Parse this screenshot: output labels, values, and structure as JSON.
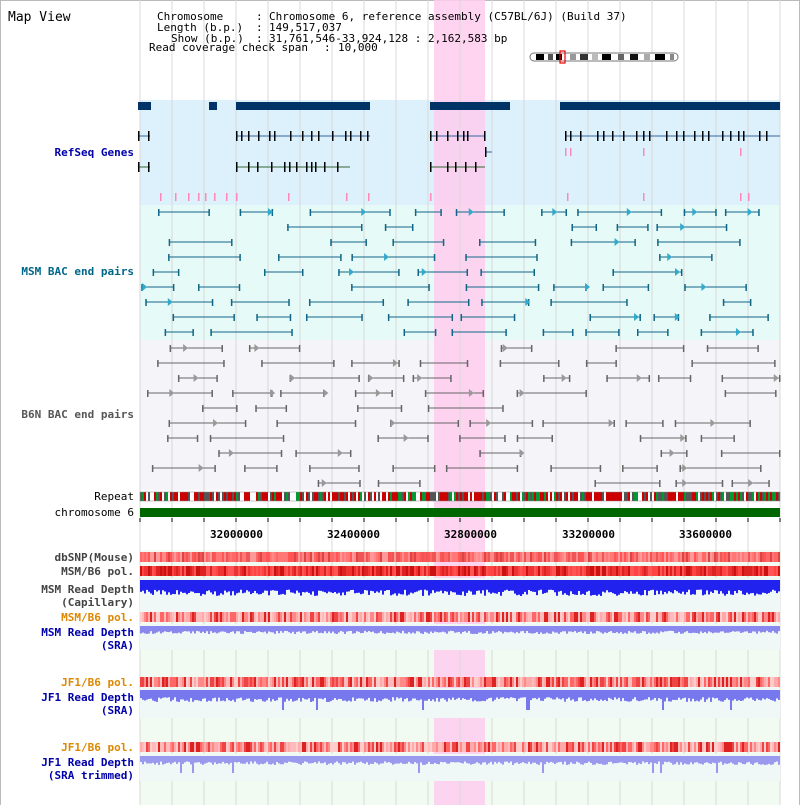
{
  "title": "Map View",
  "header": {
    "chromosome_key": "Chromosome",
    "chromosome_val": "Chromosome 6, reference assembly (C57BL/6J) (Build 37)",
    "length_key": "Length (b.p.)",
    "length_val": "149,517,037",
    "show_key": "Show (b.p.)",
    "show_val": "31,761,546-33,924,128 : 2,162,583 bp",
    "span_key": "Read coverage check span",
    "span_val": "10,000"
  },
  "tracks": {
    "refseq": "RefSeq Genes",
    "msm_bac": "MSM BAC end pairs",
    "b6n_bac": "B6N BAC end pairs",
    "repeat": "Repeat",
    "chromosome": "chromosome 6",
    "dbsnp": "dbSNP(Mouse)",
    "msm_b6_pol_1": "MSM/B6 pol.",
    "msm_depth_cap_1": "MSM Read Depth",
    "msm_depth_cap_2": "(Capillary)",
    "msm_b6_pol_2": "MSM/B6 pol.",
    "msm_depth_sra_1": "MSM Read Depth",
    "msm_depth_sra_2": "(SRA)",
    "jf1_b6_pol_1": "JF1/B6 pol.",
    "jf1_depth_sra_1": "JF1 Read Depth",
    "jf1_depth_sra_2": "(SRA)",
    "jf1_b6_pol_2": "JF1/B6 pol.",
    "jf1_depth_trim_1": "JF1 Read Depth",
    "jf1_depth_trim_2": "(SRA trimmed)"
  },
  "axis": {
    "ticks": [
      "32000000",
      "32400000",
      "32800000",
      "33200000",
      "33600000"
    ]
  },
  "colors": {
    "refseq_label": "#0000aa",
    "msm_label": "#006688",
    "b6n_label": "#555555",
    "pol_label": "#dd8800",
    "depth_label": "#0000aa",
    "highlight": "#ffccee",
    "chromosome_bar": "#006600"
  }
}
